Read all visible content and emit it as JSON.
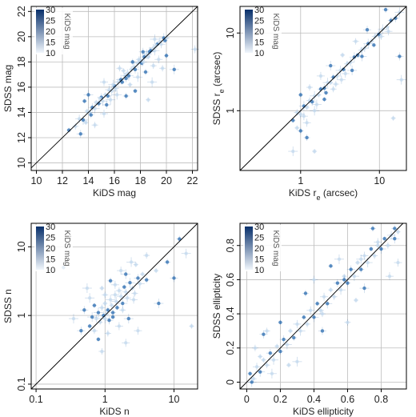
{
  "figure": {
    "colors": {
      "point_light": "#c6dbef",
      "point_dark": "#2b6cb0",
      "grid": "#bdbdbd",
      "frame": "#000000",
      "identity_line": "#000000",
      "colorbar_low": "#f0f6fc",
      "colorbar_high": "#08306b"
    }
  },
  "chart_data": [
    {
      "id": "mag",
      "type": "scatter",
      "xlabel": "KiDS mag",
      "ylabel": "SDSS mag",
      "xscale": "linear",
      "yscale": "linear",
      "xlim": [
        9.6,
        22.4
      ],
      "ylim": [
        9.4,
        22.4
      ],
      "xticks": [
        10,
        12,
        14,
        16,
        18,
        20,
        22
      ],
      "yticks": [
        10,
        12,
        14,
        16,
        18,
        20,
        22
      ],
      "grid": true,
      "identity_line": true,
      "colorbar": {
        "label": "KiDS mag",
        "ticks": [
          10,
          15,
          20,
          25,
          30
        ],
        "placement": "top-left"
      },
      "points": [
        [
          12.5,
          12.6
        ],
        [
          13.0,
          12.9
        ],
        [
          13.3,
          13.5
        ],
        [
          13.6,
          13.4
        ],
        [
          13.9,
          14.1
        ],
        [
          14.1,
          14.0
        ],
        [
          14.3,
          14.4
        ],
        [
          14.5,
          14.3
        ],
        [
          14.6,
          14.8
        ],
        [
          14.8,
          14.7
        ],
        [
          15.0,
          15.2
        ],
        [
          15.1,
          14.9
        ],
        [
          15.3,
          15.4
        ],
        [
          15.5,
          15.3
        ],
        [
          15.6,
          15.8
        ],
        [
          15.8,
          15.7
        ],
        [
          16.0,
          16.1
        ],
        [
          16.1,
          15.9
        ],
        [
          16.3,
          16.4
        ],
        [
          16.5,
          16.6
        ],
        [
          16.6,
          16.4
        ],
        [
          16.8,
          16.9
        ],
        [
          17.0,
          17.1
        ],
        [
          17.1,
          16.9
        ],
        [
          17.3,
          17.4
        ],
        [
          17.5,
          17.6
        ],
        [
          17.6,
          17.4
        ],
        [
          17.8,
          17.9
        ],
        [
          18.0,
          18.1
        ],
        [
          18.1,
          17.9
        ],
        [
          18.3,
          18.4
        ],
        [
          18.5,
          18.6
        ],
        [
          18.6,
          18.4
        ],
        [
          18.8,
          18.9
        ],
        [
          19.0,
          19.1
        ],
        [
          19.1,
          18.9
        ],
        [
          19.3,
          19.4
        ],
        [
          19.5,
          19.6
        ],
        [
          19.6,
          19.4
        ],
        [
          19.8,
          19.9
        ],
        [
          19.9,
          19.7
        ],
        [
          20.0,
          19.9
        ],
        [
          18.2,
          18.0
        ],
        [
          18.7,
          18.8
        ],
        [
          19.2,
          19.3
        ],
        [
          17.9,
          18.2
        ],
        [
          16.9,
          16.7
        ],
        [
          15.9,
          16.2
        ],
        [
          14.9,
          15.1
        ],
        [
          14.2,
          13.8
        ],
        [
          15.4,
          14.6
        ],
        [
          16.2,
          15.4
        ],
        [
          17.2,
          16.2
        ],
        [
          18.4,
          17.2
        ],
        [
          19.4,
          18.2
        ],
        [
          18.9,
          16.4
        ],
        [
          17.6,
          15.7
        ],
        [
          16.4,
          17.5
        ],
        [
          15.2,
          16.4
        ],
        [
          14.0,
          15.4
        ],
        [
          13.7,
          14.9
        ],
        [
          19.7,
          17.5
        ],
        [
          22.2,
          19.0
        ],
        [
          20.6,
          17.4
        ],
        [
          18.6,
          15.0
        ],
        [
          14.5,
          13.0
        ],
        [
          13.4,
          12.3
        ],
        [
          15.7,
          15.0
        ],
        [
          16.7,
          17.3
        ],
        [
          17.4,
          18.0
        ],
        [
          18.2,
          18.8
        ],
        [
          19.1,
          19.8
        ],
        [
          13.8,
          13.2
        ],
        [
          16.9,
          15.3
        ],
        [
          15.2,
          13.9
        ],
        [
          17.8,
          16.8
        ],
        [
          20.0,
          18.5
        ],
        [
          19.0,
          17.7
        ]
      ]
    },
    {
      "id": "re",
      "type": "scatter",
      "xlabel": "KiDS r_e (arcsec)",
      "ylabel": "SDSS r_e (arcsec)",
      "xscale": "log",
      "yscale": "log",
      "xlim": [
        0.17,
        22
      ],
      "ylim": [
        0.17,
        22
      ],
      "xticks": [
        1,
        10
      ],
      "yticks": [
        1,
        10
      ],
      "grid": true,
      "identity_line": true,
      "colorbar": {
        "label": "KiDS mag",
        "ticks": [
          10,
          15,
          20,
          25,
          30
        ],
        "placement": "top-left"
      },
      "points": [
        [
          0.8,
          0.75
        ],
        [
          0.9,
          0.95
        ],
        [
          1.0,
          0.9
        ],
        [
          1.1,
          1.15
        ],
        [
          1.2,
          1.1
        ],
        [
          1.3,
          1.35
        ],
        [
          1.4,
          1.3
        ],
        [
          1.5,
          1.55
        ],
        [
          1.7,
          1.6
        ],
        [
          1.8,
          1.9
        ],
        [
          2.0,
          1.95
        ],
        [
          2.2,
          2.3
        ],
        [
          2.4,
          2.3
        ],
        [
          2.6,
          2.7
        ],
        [
          2.9,
          2.8
        ],
        [
          3.2,
          3.3
        ],
        [
          3.5,
          3.4
        ],
        [
          3.9,
          4.0
        ],
        [
          4.3,
          4.2
        ],
        [
          4.8,
          4.9
        ],
        [
          5.3,
          5.2
        ],
        [
          5.9,
          6.0
        ],
        [
          6.5,
          6.4
        ],
        [
          7.2,
          7.3
        ],
        [
          8.0,
          7.9
        ],
        [
          8.8,
          9.0
        ],
        [
          9.8,
          9.6
        ],
        [
          11.0,
          11.2
        ],
        [
          12.5,
          12.0
        ],
        [
          14.0,
          14.5
        ],
        [
          16.0,
          15.5
        ],
        [
          18.0,
          18.5
        ],
        [
          0.9,
          0.6
        ],
        [
          1.0,
          0.55
        ],
        [
          1.2,
          0.7
        ],
        [
          1.5,
          1.0
        ],
        [
          2.0,
          1.4
        ],
        [
          2.6,
          1.9
        ],
        [
          3.3,
          2.5
        ],
        [
          4.5,
          3.3
        ],
        [
          1.0,
          1.6
        ],
        [
          1.3,
          2.0
        ],
        [
          1.8,
          2.8
        ],
        [
          2.4,
          3.8
        ],
        [
          3.4,
          5.2
        ],
        [
          5.0,
          7.8
        ],
        [
          7.0,
          11.0
        ],
        [
          0.8,
          0.3
        ],
        [
          1.5,
          0.3
        ],
        [
          1.2,
          0.45
        ],
        [
          18.0,
          5.0
        ],
        [
          19.0,
          2.5
        ],
        [
          15.0,
          0.8
        ],
        [
          12.0,
          20.0
        ],
        [
          1.1,
          0.85
        ],
        [
          1.6,
          1.2
        ],
        [
          2.1,
          1.7
        ],
        [
          2.8,
          2.2
        ],
        [
          3.7,
          3.0
        ],
        [
          6.0,
          5.0
        ],
        [
          8.5,
          7.0
        ],
        [
          10.5,
          9.0
        ],
        [
          13.0,
          10.5
        ]
      ]
    },
    {
      "id": "n",
      "type": "scatter",
      "xlabel": "KiDS n",
      "ylabel": "SDSS n",
      "xscale": "log",
      "yscale": "log",
      "xlim": [
        0.085,
        22
      ],
      "ylim": [
        0.085,
        22
      ],
      "xticks": [
        0.1,
        1,
        10
      ],
      "yticks": [
        0.1,
        1,
        10
      ],
      "grid": true,
      "identity_line": true,
      "colorbar": {
        "label": "KiDS mag",
        "ticks": [
          10,
          15,
          20,
          25,
          30
        ],
        "placement": "top-left"
      },
      "points": [
        [
          0.6,
          0.7
        ],
        [
          0.7,
          0.6
        ],
        [
          0.75,
          0.9
        ],
        [
          0.8,
          1.1
        ],
        [
          0.85,
          0.8
        ],
        [
          0.9,
          1.3
        ],
        [
          0.95,
          1.0
        ],
        [
          1.0,
          0.9
        ],
        [
          1.0,
          1.5
        ],
        [
          1.1,
          1.2
        ],
        [
          1.15,
          0.85
        ],
        [
          1.2,
          1.7
        ],
        [
          1.25,
          1.4
        ],
        [
          1.3,
          1.1
        ],
        [
          1.4,
          2.0
        ],
        [
          1.45,
          1.6
        ],
        [
          1.5,
          1.3
        ],
        [
          1.6,
          2.3
        ],
        [
          1.7,
          1.9
        ],
        [
          1.8,
          1.5
        ],
        [
          1.9,
          2.6
        ],
        [
          2.0,
          2.2
        ],
        [
          2.1,
          1.8
        ],
        [
          2.3,
          3.0
        ],
        [
          2.5,
          2.5
        ],
        [
          2.7,
          2.1
        ],
        [
          3.0,
          3.5
        ],
        [
          3.2,
          2.9
        ],
        [
          3.5,
          4.0
        ],
        [
          4.0,
          3.3
        ],
        [
          0.5,
          1.2
        ],
        [
          0.6,
          1.8
        ],
        [
          0.9,
          2.5
        ],
        [
          1.2,
          3.2
        ],
        [
          1.7,
          4.5
        ],
        [
          2.4,
          6.0
        ],
        [
          0.8,
          0.45
        ],
        [
          1.1,
          0.55
        ],
        [
          1.6,
          0.7
        ],
        [
          2.2,
          0.9
        ],
        [
          0.7,
          1.4
        ],
        [
          1.0,
          2.0
        ],
        [
          1.4,
          2.8
        ],
        [
          2.0,
          4.0
        ],
        [
          2.8,
          5.5
        ],
        [
          4.0,
          7.5
        ],
        [
          0.45,
          0.6
        ],
        [
          0.55,
          2.5
        ],
        [
          5.5,
          4.5
        ],
        [
          8.0,
          6.0
        ],
        [
          10.0,
          3.5
        ],
        [
          15.0,
          8.0
        ],
        [
          18.0,
          0.7
        ],
        [
          12.0,
          13.0
        ],
        [
          3.0,
          0.6
        ],
        [
          0.35,
          0.9
        ],
        [
          0.25,
          5.0
        ],
        [
          0.9,
          0.3
        ],
        [
          2.0,
          0.4
        ],
        [
          6.0,
          1.5
        ],
        [
          1.3,
          0.95
        ],
        [
          1.8,
          1.2
        ],
        [
          2.6,
          1.7
        ],
        [
          0.65,
          0.95
        ],
        [
          1.05,
          1.05
        ]
      ]
    },
    {
      "id": "ellipticity",
      "type": "scatter",
      "xlabel": "KiDS ellipticity",
      "ylabel": "SDSS ellipticity",
      "xscale": "linear",
      "yscale": "linear",
      "xlim": [
        -0.04,
        0.95
      ],
      "ylim": [
        -0.04,
        0.93
      ],
      "xticks": [
        0.0,
        0.2,
        0.4,
        0.6,
        0.8
      ],
      "yticks": [
        0.0,
        0.2,
        0.4,
        0.6,
        0.8
      ],
      "grid": true,
      "identity_line": true,
      "colorbar": {
        "label": "KiDS mag",
        "ticks": [
          10,
          15,
          20,
          25,
          30
        ],
        "placement": "top-left"
      },
      "points": [
        [
          0.02,
          0.05
        ],
        [
          0.04,
          0.02
        ],
        [
          0.06,
          0.09
        ],
        [
          0.08,
          0.06
        ],
        [
          0.1,
          0.13
        ],
        [
          0.12,
          0.1
        ],
        [
          0.14,
          0.17
        ],
        [
          0.16,
          0.13
        ],
        [
          0.18,
          0.21
        ],
        [
          0.2,
          0.18
        ],
        [
          0.22,
          0.25
        ],
        [
          0.24,
          0.22
        ],
        [
          0.26,
          0.3
        ],
        [
          0.28,
          0.26
        ],
        [
          0.3,
          0.34
        ],
        [
          0.32,
          0.3
        ],
        [
          0.34,
          0.38
        ],
        [
          0.36,
          0.34
        ],
        [
          0.38,
          0.42
        ],
        [
          0.4,
          0.38
        ],
        [
          0.42,
          0.46
        ],
        [
          0.44,
          0.42
        ],
        [
          0.46,
          0.5
        ],
        [
          0.48,
          0.46
        ],
        [
          0.5,
          0.54
        ],
        [
          0.52,
          0.5
        ],
        [
          0.54,
          0.58
        ],
        [
          0.56,
          0.54
        ],
        [
          0.58,
          0.62
        ],
        [
          0.6,
          0.58
        ],
        [
          0.62,
          0.66
        ],
        [
          0.64,
          0.62
        ],
        [
          0.66,
          0.7
        ],
        [
          0.68,
          0.66
        ],
        [
          0.7,
          0.74
        ],
        [
          0.72,
          0.7
        ],
        [
          0.74,
          0.78
        ],
        [
          0.76,
          0.74
        ],
        [
          0.78,
          0.82
        ],
        [
          0.8,
          0.78
        ],
        [
          0.82,
          0.84
        ],
        [
          0.84,
          0.8
        ],
        [
          0.86,
          0.86
        ],
        [
          0.88,
          0.84
        ],
        [
          0.9,
          0.88
        ],
        [
          0.05,
          0.2
        ],
        [
          0.1,
          0.28
        ],
        [
          0.15,
          0.05
        ],
        [
          0.25,
          0.1
        ],
        [
          0.35,
          0.52
        ],
        [
          0.45,
          0.3
        ],
        [
          0.55,
          0.72
        ],
        [
          0.65,
          0.48
        ],
        [
          0.75,
          0.9
        ],
        [
          0.85,
          0.62
        ],
        [
          0.3,
          0.12
        ],
        [
          0.2,
          0.35
        ],
        [
          0.6,
          0.35
        ],
        [
          0.4,
          0.6
        ],
        [
          0.7,
          0.55
        ],
        [
          0.5,
          0.68
        ],
        [
          0.12,
          0.3
        ],
        [
          0.9,
          0.7
        ],
        [
          0.03,
          0.0
        ],
        [
          0.08,
          0.15
        ],
        [
          0.45,
          0.4
        ],
        [
          0.58,
          0.6
        ],
        [
          0.68,
          0.72
        ],
        [
          0.78,
          0.8
        ],
        [
          0.88,
          0.9
        ]
      ]
    }
  ]
}
